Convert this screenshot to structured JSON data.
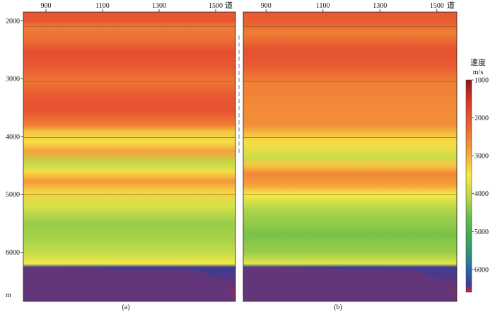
{
  "chart_data": [
    {
      "type": "heatmap",
      "panel_label": "(a)",
      "x_ticks": [
        "900",
        "1100",
        "1300",
        "1500"
      ],
      "x_unit_label": "道",
      "y_ticks": [
        "2000",
        "3000",
        "4000",
        "5000",
        "6000"
      ],
      "y_unit_label": "m",
      "xlim": [
        820,
        1570
      ],
      "ylim": [
        1850,
        6850
      ],
      "horizons": [
        2100,
        3050,
        4020,
        5000
      ],
      "velocity_layers": [
        {
          "depth": 1850,
          "velocity": 2050
        },
        {
          "depth": 2000,
          "velocity": 2000
        },
        {
          "depth": 2100,
          "velocity": 2450
        },
        {
          "depth": 2300,
          "velocity": 2350
        },
        {
          "depth": 2550,
          "velocity": 1900
        },
        {
          "depth": 2800,
          "velocity": 2050
        },
        {
          "depth": 3050,
          "velocity": 2400
        },
        {
          "depth": 3250,
          "velocity": 2100
        },
        {
          "depth": 3550,
          "velocity": 1950
        },
        {
          "depth": 3800,
          "velocity": 2500
        },
        {
          "depth": 3920,
          "velocity": 3200
        },
        {
          "depth": 4100,
          "velocity": 3400
        },
        {
          "depth": 4250,
          "velocity": 2900
        },
        {
          "depth": 4480,
          "velocity": 4000
        },
        {
          "depth": 4600,
          "velocity": 3400
        },
        {
          "depth": 4780,
          "velocity": 2800
        },
        {
          "depth": 4950,
          "velocity": 3300
        },
        {
          "depth": 5200,
          "velocity": 3800
        },
        {
          "depth": 5500,
          "velocity": 4300
        },
        {
          "depth": 5800,
          "velocity": 4200
        },
        {
          "depth": 6050,
          "velocity": 3900
        },
        {
          "depth": 6200,
          "velocity": 3500
        },
        {
          "depth": 6260,
          "velocity": 6400
        },
        {
          "depth": 6850,
          "velocity": 6500
        }
      ]
    },
    {
      "type": "heatmap",
      "panel_label": "(b)",
      "x_ticks": [
        "900",
        "1100",
        "1300",
        "1500"
      ],
      "x_unit_label": "道",
      "y_ticks": [],
      "xlim": [
        820,
        1570
      ],
      "ylim": [
        1850,
        6850
      ],
      "horizons": [
        2100,
        3050,
        4020,
        5000
      ],
      "velocity_layers": [
        {
          "depth": 1850,
          "velocity": 2050
        },
        {
          "depth": 2050,
          "velocity": 2150
        },
        {
          "depth": 2200,
          "velocity": 2500
        },
        {
          "depth": 2500,
          "velocity": 1950
        },
        {
          "depth": 2800,
          "velocity": 2100
        },
        {
          "depth": 3050,
          "velocity": 2500
        },
        {
          "depth": 3400,
          "velocity": 2600
        },
        {
          "depth": 3800,
          "velocity": 2700
        },
        {
          "depth": 4020,
          "velocity": 3300
        },
        {
          "depth": 4150,
          "velocity": 3400
        },
        {
          "depth": 4350,
          "velocity": 3900
        },
        {
          "depth": 4500,
          "velocity": 3200
        },
        {
          "depth": 4650,
          "velocity": 2600
        },
        {
          "depth": 4850,
          "velocity": 2900
        },
        {
          "depth": 5000,
          "velocity": 3500
        },
        {
          "depth": 5300,
          "velocity": 4200
        },
        {
          "depth": 5700,
          "velocity": 4500
        },
        {
          "depth": 6000,
          "velocity": 4300
        },
        {
          "depth": 6200,
          "velocity": 3700
        },
        {
          "depth": 6260,
          "velocity": 6400
        },
        {
          "depth": 6850,
          "velocity": 6500
        }
      ]
    },
    {
      "type": "colorbar",
      "title": "速度",
      "unit": "m/s",
      "ticks": [
        "1000",
        "2000",
        "3000",
        "4000",
        "5000",
        "6000"
      ],
      "range": [
        1000,
        6600
      ],
      "colors": [
        {
          "value": 1000,
          "color": "#8b1a1a"
        },
        {
          "value": 1500,
          "color": "#d7302b"
        },
        {
          "value": 2200,
          "color": "#ec6432"
        },
        {
          "value": 2900,
          "color": "#f4a23a"
        },
        {
          "value": 3500,
          "color": "#f5ea48"
        },
        {
          "value": 4100,
          "color": "#b8d84a"
        },
        {
          "value": 4600,
          "color": "#6bbd4a"
        },
        {
          "value": 5100,
          "color": "#3fae52"
        },
        {
          "value": 5600,
          "color": "#2d8f7e"
        },
        {
          "value": 6000,
          "color": "#2b66a8"
        },
        {
          "value": 6400,
          "color": "#3c3c96"
        },
        {
          "value": 6600,
          "color": "#d82020"
        }
      ]
    }
  ]
}
